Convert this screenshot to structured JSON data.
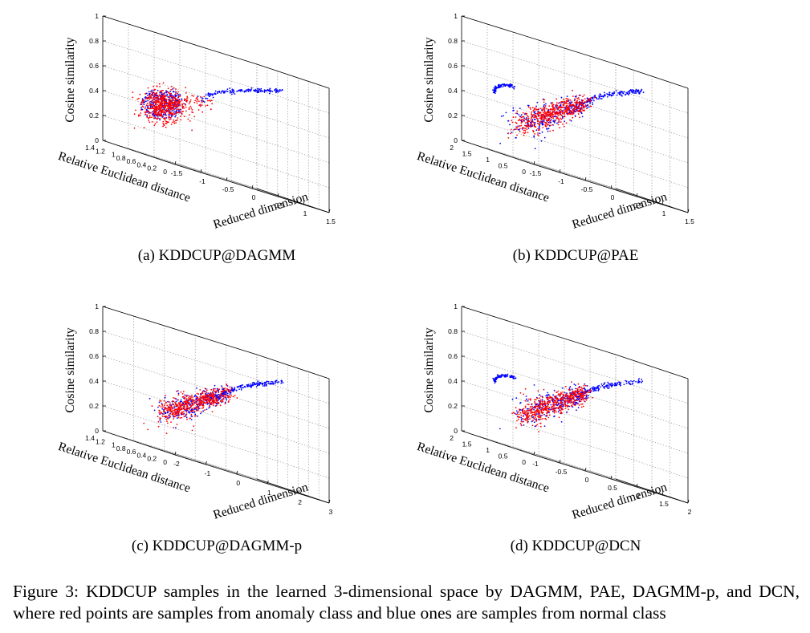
{
  "panels": [
    {
      "caption": "(a) KDDCUP@DAGMM",
      "z_label": "Cosine similarity",
      "y_label": "Relative Euclidean distance",
      "x_label": "Reduced dimension",
      "z_ticks": [
        "0",
        "0.2",
        "0.4",
        "0.6",
        "0.8",
        "1"
      ],
      "y_ticks": [
        "0",
        "0.2",
        "0.4",
        "0.6",
        "0.8",
        "1",
        "1.2",
        "1.4"
      ],
      "x_ticks": [
        "-1.5",
        "-1",
        "-0.5",
        "0",
        "0.5",
        "1",
        "1.5"
      ],
      "shape": "dagmm"
    },
    {
      "caption": "(b) KDDCUP@PAE",
      "z_label": "Cosine similarity",
      "y_label": "Relative Euclidean distance",
      "x_label": "Reduced dimension",
      "z_ticks": [
        "0",
        "0.2",
        "0.4",
        "0.6",
        "0.8",
        "1"
      ],
      "y_ticks": [
        "0",
        "0.5",
        "1",
        "1.5",
        "2"
      ],
      "x_ticks": [
        "-1.5",
        "-1",
        "-0.5",
        "0",
        "0.5",
        "1",
        "1.5"
      ],
      "shape": "pae"
    },
    {
      "caption": "(c) KDDCUP@DAGMM-p",
      "z_label": "Cosine similarity",
      "y_label": "Relative Euclidean distance",
      "x_label": "Reduced dimension",
      "z_ticks": [
        "0",
        "0.2",
        "0.4",
        "0.6",
        "0.8",
        "1"
      ],
      "y_ticks": [
        "0",
        "0.2",
        "0.4",
        "0.6",
        "0.8",
        "1",
        "1.2",
        "1.4"
      ],
      "x_ticks": [
        "-2",
        "-1",
        "0",
        "1",
        "2",
        "3"
      ],
      "shape": "dagmmp"
    },
    {
      "caption": "(d) KDDCUP@DCN",
      "z_label": "Cosine similarity",
      "y_label": "Relative Euclidean distance",
      "x_label": "Reduced dimension",
      "z_ticks": [
        "0",
        "0.2",
        "0.4",
        "0.6",
        "0.8",
        "1"
      ],
      "y_ticks": [
        "0",
        "0.5",
        "1",
        "1.5",
        "2"
      ],
      "x_ticks": [
        "-1",
        "-0.5",
        "0",
        "0.5",
        "1",
        "1.5",
        "2"
      ],
      "shape": "dcn"
    }
  ],
  "colors": {
    "anomaly": "#ff0000",
    "normal": "#0000ff"
  },
  "figure_caption": "Figure 3: KDDCUP samples in the learned 3-dimensional space by DAGMM, PAE, DAGMM-p, and DCN, where red points are samples from anomaly class and blue ones are samples from normal class"
}
